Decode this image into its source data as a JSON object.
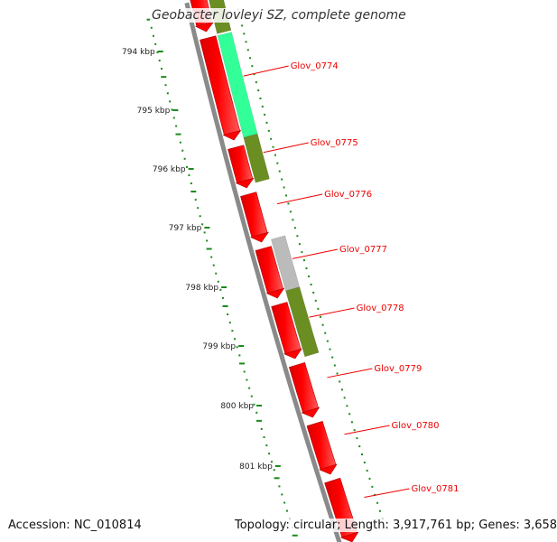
{
  "title": "Geobacter lovleyi SZ, complete genome",
  "accession": "Accession: NC_010814",
  "topology": "Topology: circular; Length: 3,917,761 bp; Genes: 3,658",
  "colors": {
    "gene_red": "#ff0000",
    "backbone": "#8a8a8a",
    "tick_green": "#1a8a1a",
    "label_red": "#ee0000",
    "cog_olive": "#6b8e23",
    "cog_mint": "#33ff99",
    "cog_gray": "#bbbbbb"
  },
  "ticks": [
    "794 kbp",
    "795 kbp",
    "796 kbp",
    "797 kbp",
    "798 kbp",
    "799 kbp",
    "800 kbp",
    "801 kbp"
  ],
  "genes": [
    {
      "name": "Glov_0774",
      "cog_color": "#33ff99"
    },
    {
      "name": "Glov_0775",
      "cog_color": "#6b8e23"
    },
    {
      "name": "Glov_0776",
      "cog_color": null
    },
    {
      "name": "Glov_0777",
      "cog_color": "#bbbbbb"
    },
    {
      "name": "Glov_0778",
      "cog_color": "#6b8e23"
    },
    {
      "name": "Glov_0779",
      "cog_color": null
    },
    {
      "name": "Glov_0780",
      "cog_color": null
    },
    {
      "name": "Glov_0781",
      "cog_color": null
    }
  ]
}
